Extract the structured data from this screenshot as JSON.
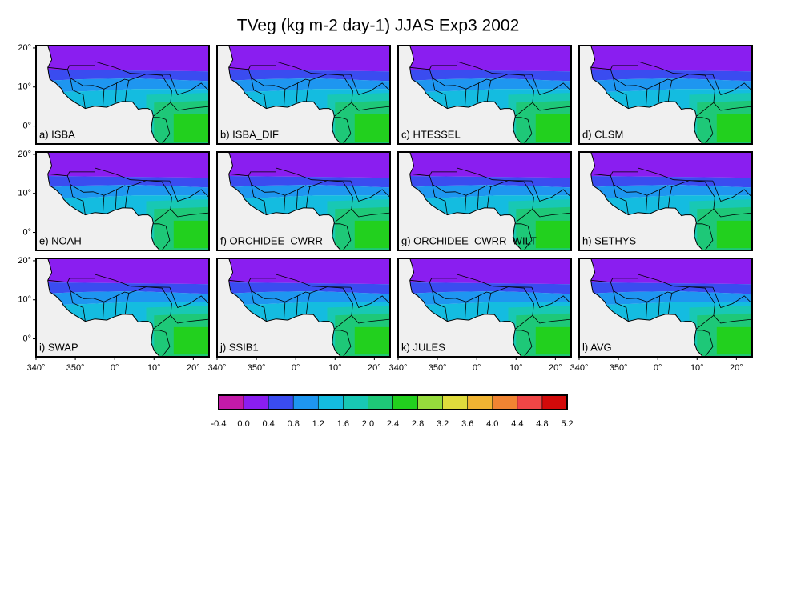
{
  "title": "TVeg (kg m-2 day-1) JJAS Exp3 2002",
  "lon_range": [
    -20,
    24
  ],
  "lat_range": [
    -4.6,
    20.6
  ],
  "panels": [
    {
      "label": "a) ISBA"
    },
    {
      "label": "b) ISBA_DIF"
    },
    {
      "label": "c) HTESSEL"
    },
    {
      "label": "d) CLSM"
    },
    {
      "label": "e) NOAH"
    },
    {
      "label": "f) ORCHIDEE_CWRR"
    },
    {
      "label": "g) ORCHIDEE_CWRR_WILT"
    },
    {
      "label": "h) SETHYS"
    },
    {
      "label": "i) SWAP"
    },
    {
      "label": "j) SSIB1"
    },
    {
      "label": "k) JULES"
    },
    {
      "label": "l) AVG"
    }
  ],
  "lat_ticks": [
    {
      "value": 20,
      "label": "20°"
    },
    {
      "value": 10,
      "label": "10°"
    },
    {
      "value": 0,
      "label": "0°"
    }
  ],
  "lon_ticks": [
    {
      "value": -20,
      "label": "340°"
    },
    {
      "value": -10,
      "label": "350°"
    },
    {
      "value": 0,
      "label": "0°"
    },
    {
      "value": 10,
      "label": "10°"
    },
    {
      "value": 20,
      "label": "20°"
    }
  ],
  "colorbar": {
    "levels": [
      -0.4,
      {
        "value": 0,
        "label": "0.0"
      },
      0.4,
      0.8,
      1.2,
      1.6,
      {
        "value": 2,
        "label": "2.0"
      },
      2.4,
      2.8,
      3.2,
      3.6,
      {
        "value": 4,
        "label": "4.0"
      },
      4.4,
      4.8,
      5.2
    ],
    "colors": [
      "#c41aa8",
      "#8a1ef0",
      "#3a4cf0",
      "#1e96f0",
      "#14bce0",
      "#18c8b4",
      "#1ec878",
      "#22d01e",
      "#96dc3c",
      "#e0dc3c",
      "#f0b432",
      "#f08432",
      "#f04646",
      "#d20a0a",
      "#aa2828"
    ]
  }
}
